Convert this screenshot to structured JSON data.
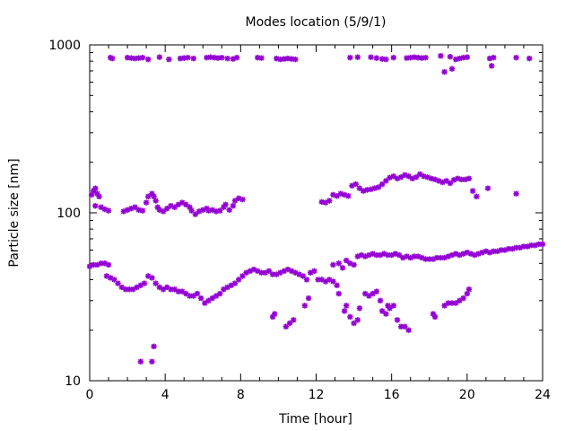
{
  "chart_data": {
    "type": "scatter",
    "title": "Modes location (5/9/1)",
    "xlabel": "Time [hour]",
    "ylabel": "Particle size [nm]",
    "xlim": [
      0,
      24
    ],
    "ylim": [
      10,
      1000
    ],
    "yscale": "log",
    "grid": false,
    "marker_color": "#9400d3",
    "x_ticks": [
      "0",
      "4",
      "8",
      "12",
      "16",
      "20",
      "24"
    ],
    "x_tick_values": [
      0,
      4,
      8,
      12,
      16,
      20,
      24
    ],
    "y_ticks": [
      "10",
      "100",
      "1000"
    ],
    "y_tick_values": [
      10,
      100,
      1000
    ],
    "series": [
      {
        "points": [
          [
            1.1,
            840
          ],
          [
            1.2,
            830
          ],
          [
            2.0,
            840
          ],
          [
            2.2,
            835
          ],
          [
            2.4,
            830
          ],
          [
            2.6,
            835
          ],
          [
            2.8,
            840
          ],
          [
            3.1,
            820
          ],
          [
            3.7,
            845
          ],
          [
            4.2,
            820
          ],
          [
            4.8,
            830
          ],
          [
            5.0,
            835
          ],
          [
            5.2,
            840
          ],
          [
            5.5,
            830
          ],
          [
            6.2,
            840
          ],
          [
            6.4,
            845
          ],
          [
            6.6,
            840
          ],
          [
            6.8,
            835
          ],
          [
            7.0,
            840
          ],
          [
            7.3,
            830
          ],
          [
            7.6,
            825
          ],
          [
            7.8,
            840
          ],
          [
            8.9,
            840
          ],
          [
            9.1,
            835
          ],
          [
            9.9,
            830
          ],
          [
            10.1,
            820
          ],
          [
            10.3,
            825
          ],
          [
            10.5,
            830
          ],
          [
            10.7,
            825
          ],
          [
            10.9,
            820
          ],
          [
            13.8,
            840
          ],
          [
            14.2,
            845
          ],
          [
            14.9,
            845
          ],
          [
            15.2,
            835
          ],
          [
            15.5,
            825
          ],
          [
            15.7,
            820
          ],
          [
            16.1,
            840
          ],
          [
            16.8,
            835
          ],
          [
            17.0,
            840
          ],
          [
            17.2,
            845
          ],
          [
            17.4,
            840
          ],
          [
            17.6,
            835
          ],
          [
            17.8,
            840
          ],
          [
            18.6,
            860
          ],
          [
            18.8,
            690
          ],
          [
            19.1,
            850
          ],
          [
            19.2,
            720
          ],
          [
            19.4,
            820
          ],
          [
            19.6,
            830
          ],
          [
            19.8,
            840
          ],
          [
            20.0,
            845
          ],
          [
            21.2,
            830
          ],
          [
            21.3,
            750
          ],
          [
            21.4,
            840
          ],
          [
            22.6,
            840
          ],
          [
            23.3,
            830
          ]
        ]
      },
      {
        "points": [
          [
            0.1,
            128
          ],
          [
            0.2,
            135
          ],
          [
            0.3,
            140
          ],
          [
            0.4,
            130
          ],
          [
            0.5,
            125
          ],
          [
            0.3,
            110
          ],
          [
            0.6,
            108
          ],
          [
            0.8,
            105
          ],
          [
            1.0,
            103
          ],
          [
            1.8,
            102
          ],
          [
            2.0,
            104
          ],
          [
            2.2,
            106
          ],
          [
            2.4,
            108
          ],
          [
            2.6,
            104
          ],
          [
            2.8,
            103
          ],
          [
            3.0,
            115
          ],
          [
            3.1,
            125
          ],
          [
            3.3,
            130
          ],
          [
            3.4,
            125
          ],
          [
            3.5,
            118
          ],
          [
            3.6,
            108
          ],
          [
            3.7,
            104
          ],
          [
            3.9,
            102
          ],
          [
            4.1,
            106
          ],
          [
            4.3,
            110
          ],
          [
            4.5,
            108
          ],
          [
            4.7,
            112
          ],
          [
            4.9,
            115
          ],
          [
            5.1,
            112
          ],
          [
            5.3,
            108
          ],
          [
            5.4,
            103
          ],
          [
            5.6,
            98
          ],
          [
            5.8,
            102
          ],
          [
            6.0,
            104
          ],
          [
            6.2,
            106
          ],
          [
            6.3,
            103
          ],
          [
            6.5,
            104
          ],
          [
            6.7,
            102
          ],
          [
            6.9,
            103
          ],
          [
            7.1,
            108
          ],
          [
            7.2,
            112
          ],
          [
            7.4,
            104
          ],
          [
            7.6,
            110
          ],
          [
            7.7,
            118
          ],
          [
            7.9,
            122
          ],
          [
            8.1,
            120
          ],
          [
            12.3,
            116
          ],
          [
            12.5,
            115
          ],
          [
            12.7,
            118
          ],
          [
            12.9,
            128
          ],
          [
            13.1,
            126
          ],
          [
            13.3,
            130
          ],
          [
            13.5,
            128
          ],
          [
            13.7,
            126
          ],
          [
            13.9,
            145
          ],
          [
            14.1,
            148
          ],
          [
            14.3,
            140
          ],
          [
            14.5,
            135
          ],
          [
            14.7,
            137
          ],
          [
            14.9,
            138
          ],
          [
            15.1,
            140
          ],
          [
            15.3,
            142
          ],
          [
            15.5,
            148
          ],
          [
            15.7,
            155
          ],
          [
            15.9,
            162
          ],
          [
            16.1,
            165
          ],
          [
            16.3,
            160
          ],
          [
            16.5,
            163
          ],
          [
            16.7,
            168
          ],
          [
            16.9,
            165
          ],
          [
            17.1,
            160
          ],
          [
            17.3,
            163
          ],
          [
            17.5,
            170
          ],
          [
            17.7,
            165
          ],
          [
            17.9,
            163
          ],
          [
            18.1,
            160
          ],
          [
            18.3,
            158
          ],
          [
            18.5,
            155
          ],
          [
            18.7,
            152
          ],
          [
            18.9,
            155
          ],
          [
            19.1,
            150
          ],
          [
            19.3,
            157
          ],
          [
            19.5,
            160
          ],
          [
            19.7,
            158
          ],
          [
            19.9,
            158
          ],
          [
            20.1,
            160
          ],
          [
            20.3,
            135
          ],
          [
            20.5,
            125
          ],
          [
            21.1,
            140
          ],
          [
            22.6,
            130
          ]
        ]
      },
      {
        "points": [
          [
            0.0,
            48
          ],
          [
            0.2,
            49
          ],
          [
            0.4,
            49
          ],
          [
            0.6,
            50
          ],
          [
            0.8,
            50
          ],
          [
            1.0,
            49
          ],
          [
            0.9,
            42
          ],
          [
            1.1,
            41
          ],
          [
            1.3,
            40
          ],
          [
            1.5,
            38
          ],
          [
            1.7,
            36
          ],
          [
            1.9,
            35
          ],
          [
            2.1,
            35
          ],
          [
            2.3,
            35
          ],
          [
            2.5,
            36
          ],
          [
            2.7,
            37
          ],
          [
            2.9,
            38
          ],
          [
            3.1,
            42
          ],
          [
            3.3,
            41
          ],
          [
            3.5,
            38
          ],
          [
            3.7,
            36
          ],
          [
            3.9,
            35
          ],
          [
            4.1,
            36
          ],
          [
            4.3,
            35
          ],
          [
            4.5,
            35
          ],
          [
            4.7,
            34
          ],
          [
            4.9,
            34
          ],
          [
            5.1,
            33
          ],
          [
            5.3,
            32
          ],
          [
            5.5,
            32
          ],
          [
            5.7,
            33
          ],
          [
            5.9,
            31
          ],
          [
            6.1,
            29
          ],
          [
            6.3,
            30
          ],
          [
            6.5,
            31
          ],
          [
            6.7,
            32
          ],
          [
            6.9,
            33
          ],
          [
            7.1,
            35
          ],
          [
            7.3,
            36
          ],
          [
            7.5,
            37
          ],
          [
            7.7,
            38
          ],
          [
            7.9,
            40
          ],
          [
            8.1,
            42
          ],
          [
            8.3,
            44
          ],
          [
            8.5,
            45
          ],
          [
            8.7,
            46
          ],
          [
            8.9,
            45
          ],
          [
            9.1,
            44
          ],
          [
            9.3,
            44
          ],
          [
            9.5,
            45
          ],
          [
            9.7,
            43
          ],
          [
            9.9,
            43
          ],
          [
            10.1,
            44
          ],
          [
            10.3,
            45
          ],
          [
            10.5,
            46
          ],
          [
            10.7,
            45
          ],
          [
            10.9,
            44
          ],
          [
            11.1,
            43
          ],
          [
            11.3,
            42
          ],
          [
            11.5,
            40
          ],
          [
            11.7,
            44
          ],
          [
            11.9,
            45
          ],
          [
            12.1,
            40
          ],
          [
            12.3,
            40
          ],
          [
            12.5,
            39
          ],
          [
            12.7,
            40
          ],
          [
            12.9,
            39
          ],
          [
            13.1,
            37
          ],
          [
            12.9,
            49
          ],
          [
            13.2,
            50
          ],
          [
            13.4,
            47
          ],
          [
            13.6,
            52
          ],
          [
            13.8,
            50
          ],
          [
            14.0,
            49
          ],
          [
            14.2,
            55
          ],
          [
            14.4,
            56
          ],
          [
            14.6,
            55
          ],
          [
            14.8,
            56
          ],
          [
            15.0,
            57
          ],
          [
            15.2,
            56
          ],
          [
            15.4,
            56
          ],
          [
            15.6,
            57
          ],
          [
            15.8,
            56
          ],
          [
            16.0,
            56
          ],
          [
            16.2,
            57
          ],
          [
            16.4,
            56
          ],
          [
            16.6,
            54
          ],
          [
            16.8,
            55
          ],
          [
            17.0,
            54
          ],
          [
            17.2,
            55
          ],
          [
            17.4,
            55
          ],
          [
            17.6,
            54
          ],
          [
            17.8,
            53
          ],
          [
            18.0,
            53
          ],
          [
            18.2,
            53
          ],
          [
            18.4,
            54
          ],
          [
            18.6,
            54
          ],
          [
            18.8,
            54
          ],
          [
            19.0,
            55
          ],
          [
            19.2,
            56
          ],
          [
            19.4,
            57
          ],
          [
            19.6,
            56
          ],
          [
            19.8,
            57
          ],
          [
            20.0,
            58
          ],
          [
            20.2,
            57
          ],
          [
            20.4,
            56
          ],
          [
            20.6,
            57
          ],
          [
            20.8,
            58
          ],
          [
            21.0,
            59
          ],
          [
            21.2,
            58
          ],
          [
            21.4,
            59
          ],
          [
            21.6,
            59
          ],
          [
            21.8,
            60
          ],
          [
            22.0,
            60
          ],
          [
            22.2,
            61
          ],
          [
            22.4,
            61
          ],
          [
            22.6,
            62
          ],
          [
            22.8,
            62
          ],
          [
            23.0,
            63
          ],
          [
            23.2,
            63
          ],
          [
            23.4,
            64
          ],
          [
            23.6,
            64
          ],
          [
            23.8,
            65
          ],
          [
            24.0,
            65
          ],
          [
            9.7,
            24
          ],
          [
            9.8,
            25
          ],
          [
            10.4,
            21
          ],
          [
            10.6,
            22
          ],
          [
            10.8,
            23
          ],
          [
            11.4,
            28
          ],
          [
            11.6,
            31
          ],
          [
            13.2,
            33
          ],
          [
            13.5,
            26
          ],
          [
            13.6,
            28
          ],
          [
            13.8,
            24
          ],
          [
            14.0,
            22
          ],
          [
            14.2,
            23
          ],
          [
            14.3,
            27
          ],
          [
            14.6,
            33
          ],
          [
            14.8,
            32
          ],
          [
            15.0,
            33
          ],
          [
            15.2,
            34
          ],
          [
            15.4,
            30
          ],
          [
            15.5,
            26
          ],
          [
            15.7,
            25
          ],
          [
            15.8,
            28
          ],
          [
            15.9,
            27
          ],
          [
            16.1,
            28
          ],
          [
            16.3,
            23
          ],
          [
            16.5,
            21
          ],
          [
            16.7,
            21
          ],
          [
            16.9,
            20
          ],
          [
            18.2,
            25
          ],
          [
            18.3,
            24
          ],
          [
            18.8,
            28
          ],
          [
            19.0,
            29
          ],
          [
            19.2,
            29
          ],
          [
            19.4,
            29
          ],
          [
            19.6,
            30
          ],
          [
            19.8,
            31
          ],
          [
            20.0,
            33
          ],
          [
            20.1,
            35
          ],
          [
            2.7,
            13
          ],
          [
            3.3,
            13
          ],
          [
            3.4,
            16
          ]
        ]
      }
    ]
  }
}
